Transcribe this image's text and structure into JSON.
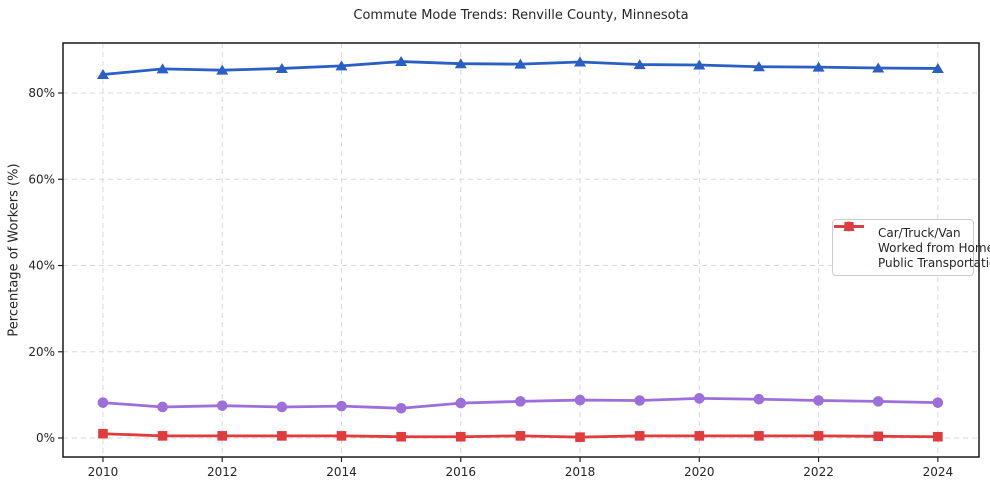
{
  "chart_data": {
    "type": "line",
    "title": "Commute Mode Trends: Renville County, Minnesota",
    "xlabel": "",
    "ylabel": "Percentage of Workers (%)",
    "x": [
      2010,
      2011,
      2012,
      2013,
      2014,
      2015,
      2016,
      2017,
      2018,
      2019,
      2020,
      2021,
      2022,
      2023,
      2024
    ],
    "x_ticks": [
      {
        "v": 2010,
        "label": "2010"
      },
      {
        "v": 2012,
        "label": "2012"
      },
      {
        "v": 2014,
        "label": "2014"
      },
      {
        "v": 2016,
        "label": "2016"
      },
      {
        "v": 2018,
        "label": "2018"
      },
      {
        "v": 2020,
        "label": "2020"
      },
      {
        "v": 2022,
        "label": "2022"
      },
      {
        "v": 2024,
        "label": "2024"
      }
    ],
    "y_ticks": [
      {
        "v": 0,
        "label": "0%"
      },
      {
        "v": 20,
        "label": "20%"
      },
      {
        "v": 40,
        "label": "40%"
      },
      {
        "v": 60,
        "label": "60%"
      },
      {
        "v": 80,
        "label": "80%"
      }
    ],
    "xlim": [
      2009.33,
      2024.69
    ],
    "ylim": [
      -4.4,
      91.6
    ],
    "grid": true,
    "grid_color": "#d9d9d9",
    "legend_position": "center-right",
    "series": [
      {
        "name": "Car/Truck/Van",
        "color": "#2b5fc3",
        "marker": "triangle",
        "values": [
          84.3,
          85.6,
          85.3,
          85.7,
          86.3,
          87.3,
          86.8,
          86.7,
          87.2,
          86.6,
          86.5,
          86.1,
          86.0,
          85.8,
          85.7
        ]
      },
      {
        "name": "Worked from Home",
        "color": "#9c6fdb",
        "marker": "circle",
        "values": [
          8.2,
          7.2,
          7.5,
          7.2,
          7.4,
          6.9,
          8.1,
          8.5,
          8.8,
          8.7,
          9.2,
          9.0,
          8.7,
          8.5,
          8.2
        ]
      },
      {
        "name": "Public Transportation",
        "color": "#e03b3d",
        "marker": "square",
        "values": [
          1.0,
          0.5,
          0.5,
          0.5,
          0.5,
          0.3,
          0.3,
          0.5,
          0.2,
          0.5,
          0.5,
          0.5,
          0.5,
          0.4,
          0.3
        ]
      }
    ]
  }
}
